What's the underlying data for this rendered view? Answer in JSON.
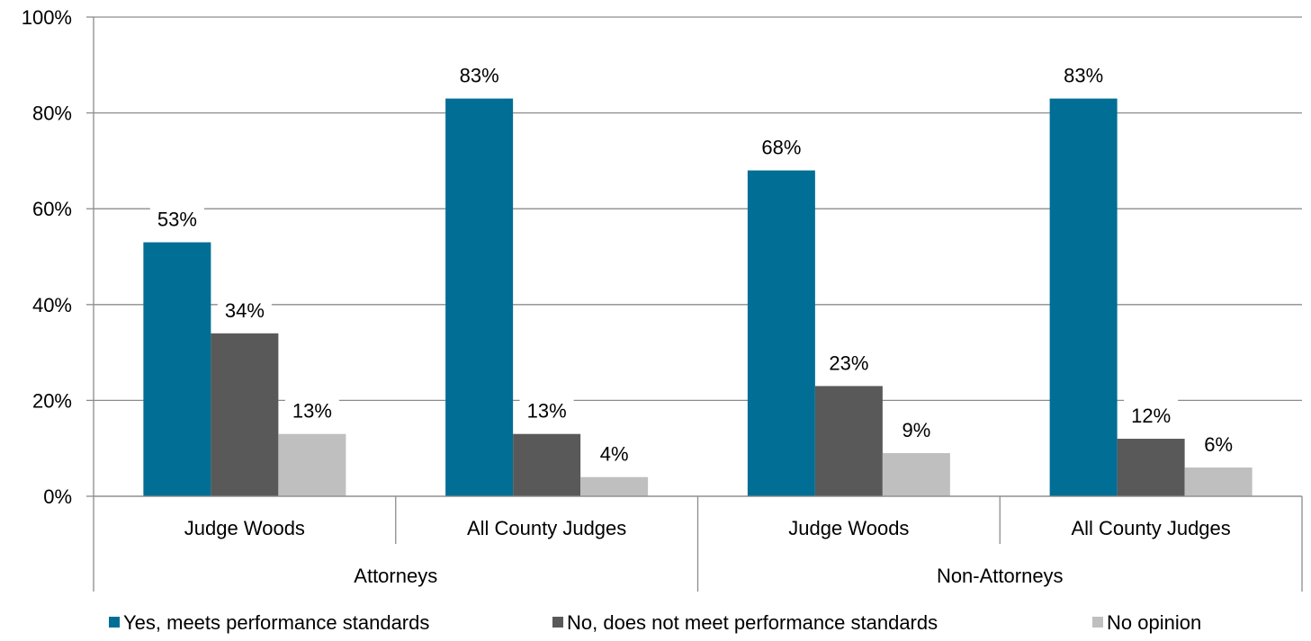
{
  "chart_data": {
    "type": "bar",
    "ylim": [
      0,
      100
    ],
    "y_ticks": [
      "0%",
      "20%",
      "40%",
      "60%",
      "80%",
      "100%"
    ],
    "y_tick_values": [
      0,
      20,
      40,
      60,
      80,
      100
    ],
    "grid": true,
    "legend_position": "bottom",
    "groups": [
      {
        "name": "Attorneys",
        "categories": [
          "Judge Woods",
          "All County Judges"
        ]
      },
      {
        "name": "Non-Attorneys",
        "categories": [
          "Judge Woods",
          "All County Judges"
        ]
      }
    ],
    "series": [
      {
        "name": "Yes, meets performance standards",
        "color": "#006E95",
        "values": [
          53,
          83,
          68,
          83
        ],
        "labels": [
          "53%",
          "83%",
          "68%",
          "83%"
        ]
      },
      {
        "name": "No, does not meet performance standards",
        "color": "#595959",
        "values": [
          34,
          13,
          23,
          12
        ],
        "labels": [
          "34%",
          "13%",
          "23%",
          "12%"
        ]
      },
      {
        "name": "No opinion",
        "color": "#BFBFBF",
        "values": [
          13,
          4,
          9,
          6
        ],
        "labels": [
          "13%",
          "4%",
          "9%",
          "6%"
        ]
      }
    ]
  }
}
